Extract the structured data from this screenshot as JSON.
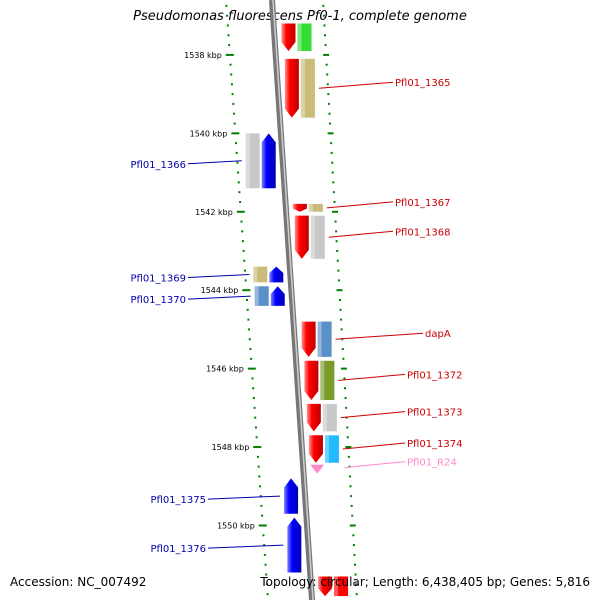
{
  "title": "Pseudomonas fluorescens Pf0-1, complete genome",
  "footer": {
    "accession": "Accession: NC_007492",
    "topology": "Topology: circular; Length: 6,438,405 bp; Genes: 5,816"
  },
  "colors": {
    "forward": "#ff0000",
    "reverse": "#0000ff",
    "tick": "#008000",
    "label_forward": "#cc0000",
    "label_reverse": "#0000aa",
    "label_rna": "#ff88cc"
  },
  "ticks": [
    {
      "kbp": 1538,
      "label": "1538 kbp",
      "side": "left"
    },
    {
      "kbp": 1540,
      "label": "1540 kbp",
      "side": "left"
    },
    {
      "kbp": 1542,
      "label": "1542 kbp",
      "side": "left"
    },
    {
      "kbp": 1544,
      "label": "1544 kbp",
      "side": "left"
    },
    {
      "kbp": 1546,
      "label": "1546 kbp",
      "side": "left"
    },
    {
      "kbp": 1548,
      "label": "1548 kbp",
      "side": "left"
    },
    {
      "kbp": 1550,
      "label": "1550 kbp",
      "side": "left"
    }
  ],
  "genes": [
    {
      "name": "",
      "strand": "+",
      "start": 1537.2,
      "end": 1537.9,
      "cog": "#ff0000",
      "label": false
    },
    {
      "name": "",
      "strand": "+",
      "start": 1537.2,
      "end": 1537.9,
      "cog": "#33dd33",
      "label": false,
      "cogOnly": true
    },
    {
      "name": "Pfl01_1365",
      "strand": "+",
      "start": 1538.1,
      "end": 1539.6,
      "cog": "#c8bc78",
      "label": true
    },
    {
      "name": "Pfl01_1366",
      "strand": "-",
      "start": 1540.0,
      "end": 1541.4,
      "cog": "#c8c8c8",
      "label": true
    },
    {
      "name": "Pfl01_1367",
      "strand": "+",
      "start": 1541.8,
      "end": 1542.0,
      "cog": "#c8bc78",
      "label": true
    },
    {
      "name": "Pfl01_1368",
      "strand": "+",
      "start": 1542.1,
      "end": 1543.2,
      "cog": "#c8c8c8",
      "label": true
    },
    {
      "name": "Pfl01_1369",
      "strand": "-",
      "start": 1543.4,
      "end": 1543.8,
      "cog": "#c8bc78",
      "label": true
    },
    {
      "name": "Pfl01_1370",
      "strand": "-",
      "start": 1543.9,
      "end": 1544.4,
      "cog": "#5b8fc8",
      "label": true
    },
    {
      "name": "dapA",
      "strand": "+",
      "start": 1544.8,
      "end": 1545.7,
      "cog": "#5b8fc8",
      "label": true
    },
    {
      "name": "Pfl01_1372",
      "strand": "+",
      "start": 1545.8,
      "end": 1546.8,
      "cog": "#7a9a2a",
      "label": true
    },
    {
      "name": "Pfl01_1373",
      "strand": "+",
      "start": 1546.9,
      "end": 1547.6,
      "cog": "#c8c8c8",
      "label": true
    },
    {
      "name": "Pfl01_1374",
      "strand": "+",
      "start": 1547.7,
      "end": 1548.4,
      "cog": "#22bbff",
      "label": true
    },
    {
      "name": "Pfl01_R24",
      "strand": "+",
      "start": 1548.45,
      "end": 1548.6,
      "cog": "#ff88cc",
      "label": true,
      "rna": true
    },
    {
      "name": "Pfl01_1375",
      "strand": "-",
      "start": 1548.8,
      "end": 1549.7,
      "cog": "",
      "label": true
    },
    {
      "name": "Pfl01_1376",
      "strand": "-",
      "start": 1549.8,
      "end": 1551.2,
      "cog": "",
      "label": true
    },
    {
      "name": "",
      "strand": "+",
      "start": 1551.3,
      "end": 1551.8,
      "cog": "#ff0000",
      "label": false
    }
  ]
}
